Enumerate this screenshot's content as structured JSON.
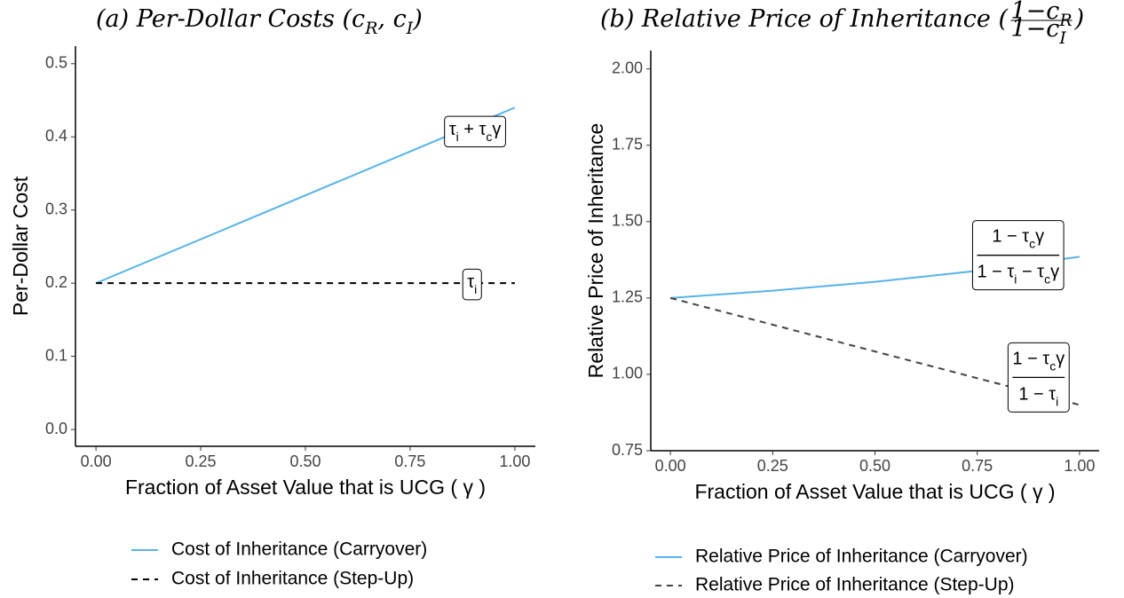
{
  "chart_data": [
    {
      "type": "line",
      "title": [
        "(a) Per-Dollar Costs (c",
        "R",
        ", c",
        "I",
        ")"
      ],
      "x_label": "Fraction of Asset Value that is UCG ( γ )",
      "y_label": "Per-Dollar Cost",
      "x": [
        0,
        1
      ],
      "series": [
        {
          "name": "Cost of Inheritance (Carryover)",
          "color": "#56B4E9",
          "dash": false,
          "values": [
            0.2,
            0.44
          ]
        },
        {
          "name": "Cost of Inheritance (Step-Up)",
          "color": "#000000",
          "dash": true,
          "values": [
            0.2,
            0.2
          ]
        }
      ],
      "xlim": [
        -0.049,
        1.049
      ],
      "ylim": [
        -0.023,
        0.524
      ],
      "xticks": [
        {
          "value": 0,
          "label": "0.00"
        },
        {
          "value": 0.25,
          "label": "0.25"
        },
        {
          "value": 0.5,
          "label": "0.50"
        },
        {
          "value": 0.75,
          "label": "0.75"
        },
        {
          "value": 1,
          "label": "1.00"
        }
      ],
      "yticks": [
        {
          "value": 0,
          "label": "0.0"
        },
        0.1,
        0.2,
        0.3,
        0.4,
        0.5
      ],
      "annotations": [
        {
          "x": 0.905,
          "y": 0.409,
          "text": [
            "τ",
            "i",
            " + τ",
            "c",
            "γ"
          ]
        },
        {
          "x": 0.898,
          "y": 0.2,
          "text": [
            "τ",
            "i"
          ]
        }
      ]
    },
    {
      "type": "line",
      "title": [
        "(b) Relative Price of Inheritance ("
      ],
      "title_fraction": {
        "numerator": [
          "1−c",
          "R"
        ],
        "denominator": [
          "1−c",
          "I"
        ]
      },
      "title_end": ")",
      "x_label": "Fraction of Asset Value that is UCG ( γ )",
      "y_label": "Relative Price of Inheritance",
      "x": [
        0,
        0.25,
        0.5,
        0.75,
        1
      ],
      "series": [
        {
          "name": "Relative Price of Inheritance (Carryover)",
          "color": "#56B4E9",
          "dash": false,
          "values": [
            1.25,
            1.274,
            1.303,
            1.339,
            1.385
          ]
        },
        {
          "name": "Relative Price of Inheritance (Step-Up)",
          "color": "#444444",
          "dash": true,
          "values": [
            1.25,
            1.1625,
            1.075,
            0.9875,
            0.9
          ]
        }
      ],
      "xlim": [
        -0.048,
        1.048
      ],
      "ylim": [
        0.75,
        2.06
      ],
      "xticks": [
        {
          "value": 0,
          "label": "0.00"
        },
        {
          "value": 0.25,
          "label": "0.25"
        },
        {
          "value": 0.5,
          "label": "0.50"
        },
        {
          "value": 0.75,
          "label": "0.75"
        },
        {
          "value": 1,
          "label": "1.00"
        }
      ],
      "yticks": [
        0.75,
        {
          "value": 1,
          "label": "1.00"
        },
        1.25,
        {
          "value": 1.5,
          "label": "1.50"
        },
        1.75,
        {
          "value": 2,
          "label": "2.00"
        }
      ],
      "annotations": [
        {
          "x": 0.85,
          "y": 1.39,
          "numerator": [
            "1 − τ",
            "c",
            "γ"
          ],
          "denominator": [
            "1 − τ",
            "i",
            " − τ",
            "c",
            "γ"
          ]
        },
        {
          "x": 0.9,
          "y": 0.99,
          "numerator": [
            "1 − τ",
            "c",
            "γ"
          ],
          "denominator": [
            "1 − τ",
            "i"
          ]
        }
      ]
    }
  ]
}
